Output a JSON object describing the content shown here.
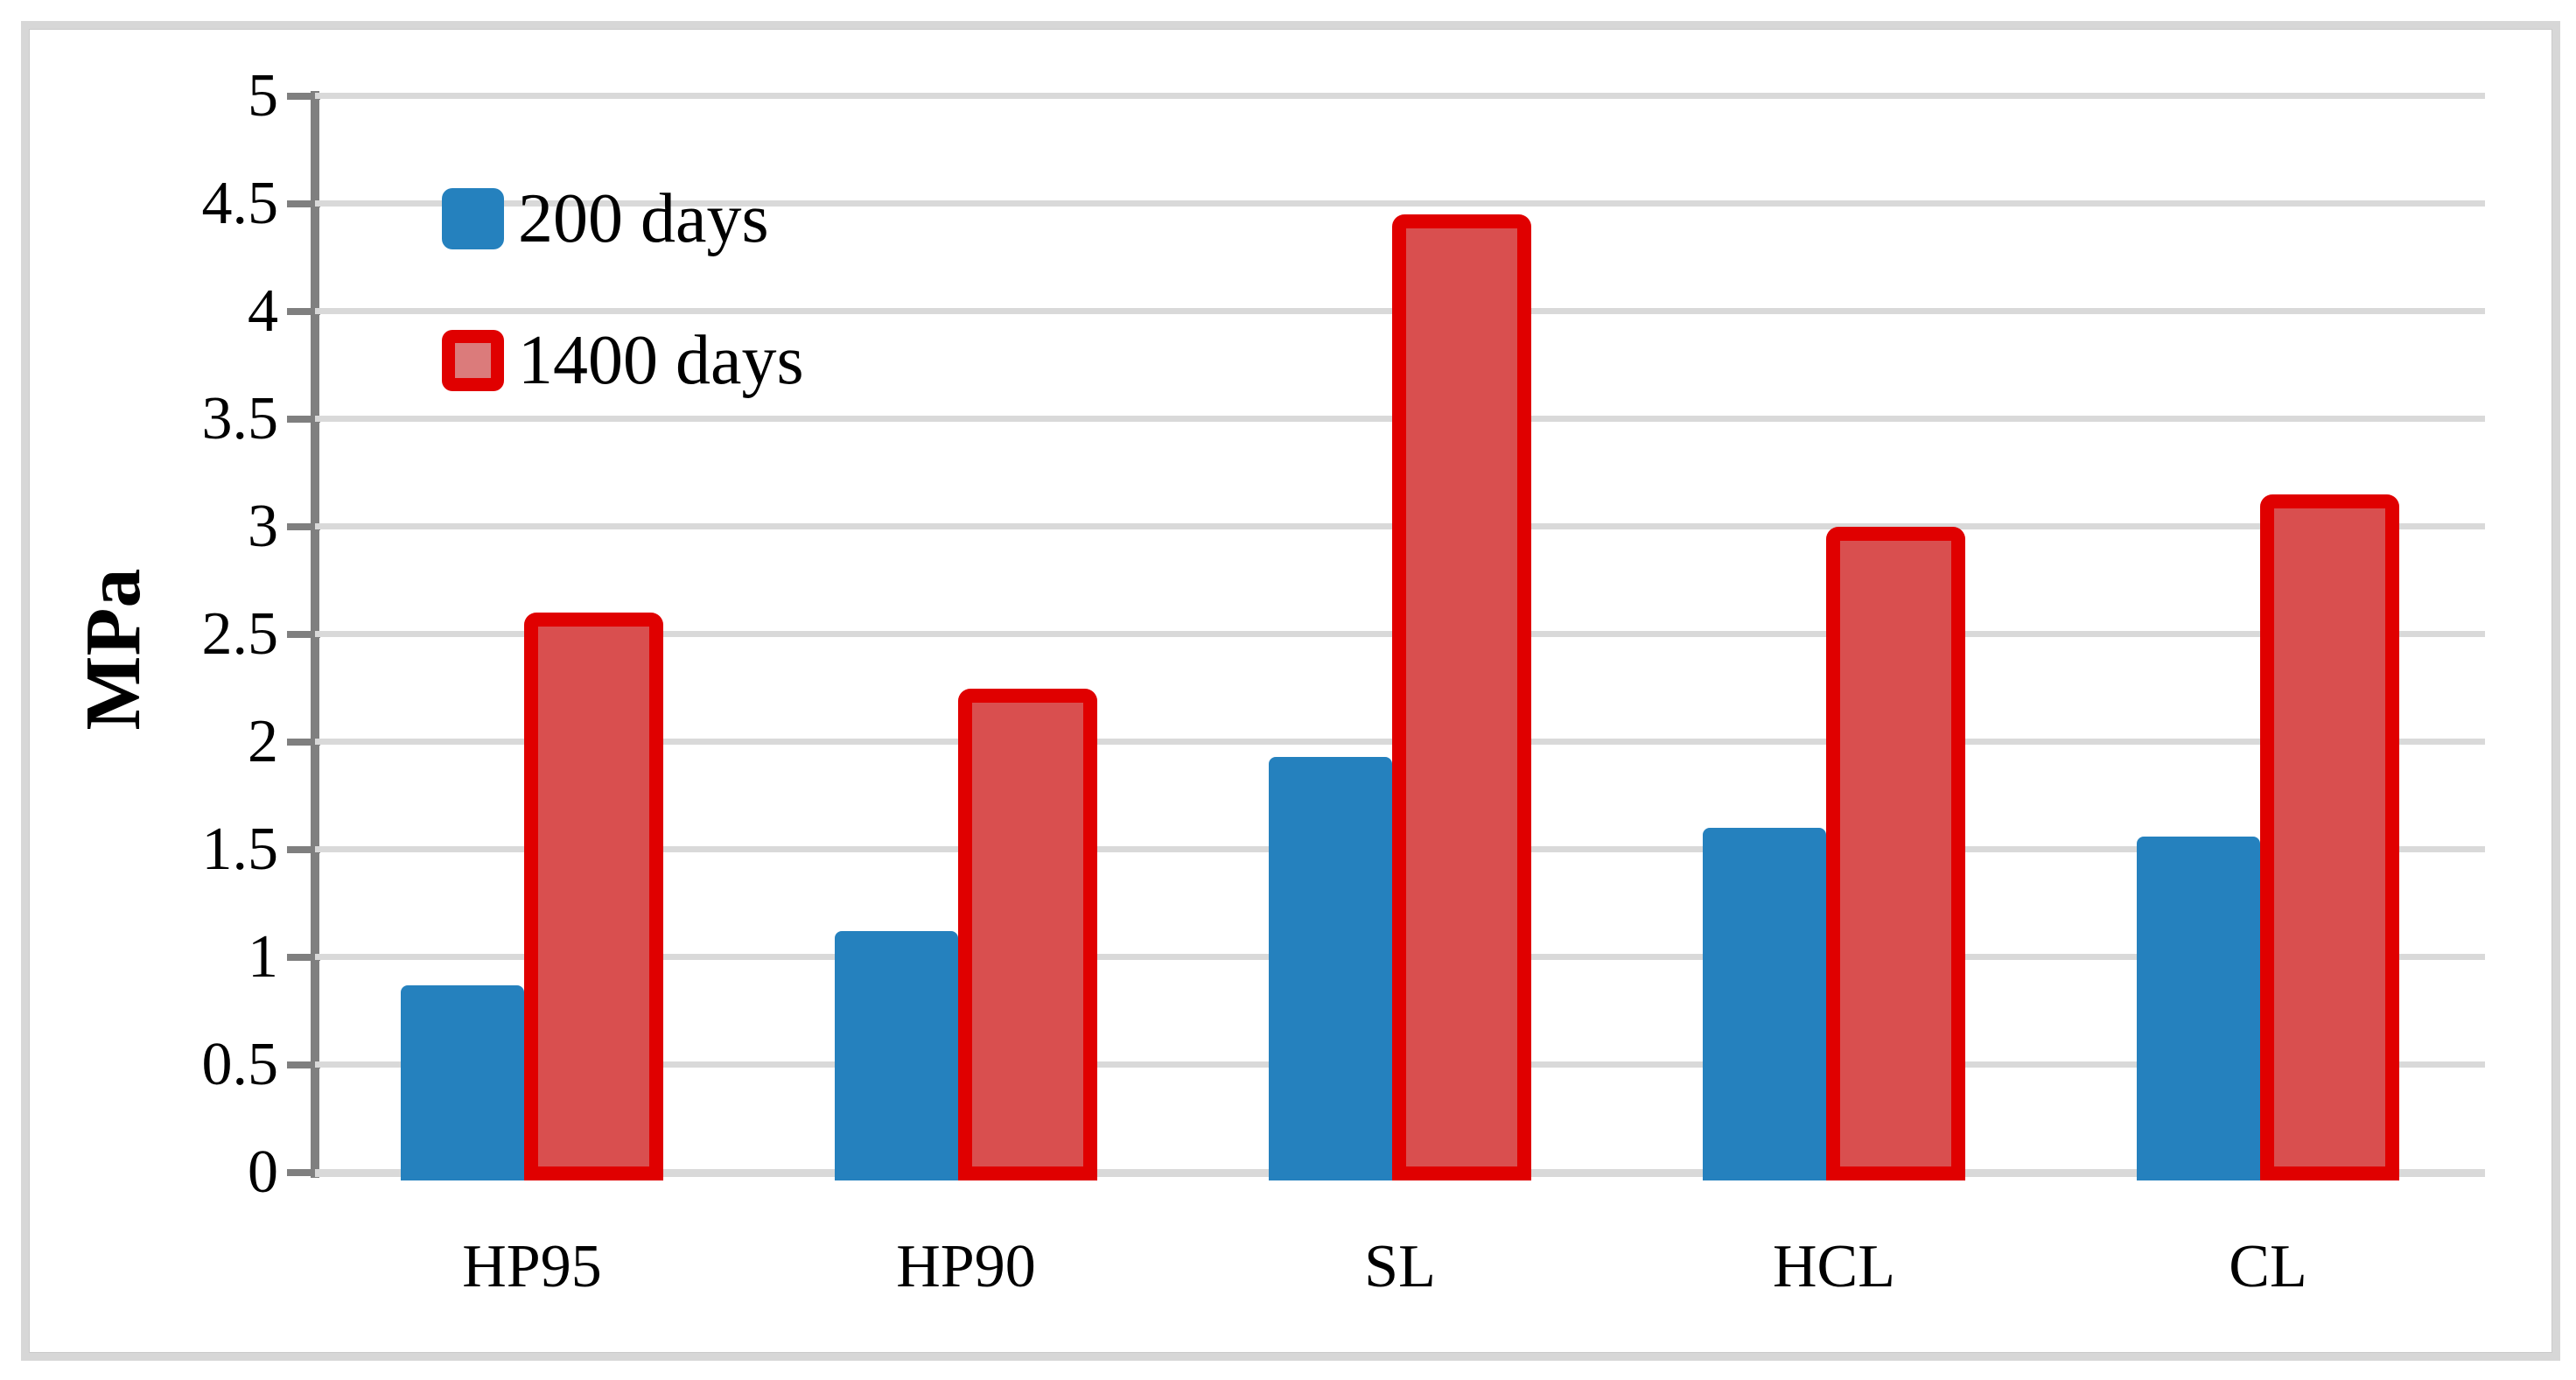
{
  "chart_data": {
    "type": "bar",
    "title": "",
    "xlabel": "",
    "ylabel": "MPa",
    "categories": [
      "HP95",
      "HP90",
      "SL",
      "HCL",
      "CL"
    ],
    "series": [
      {
        "name": "200 days",
        "style": "solid",
        "fill": "#2581BE",
        "border": "#2581BE",
        "values": [
          0.87,
          1.12,
          1.93,
          1.6,
          1.56
        ]
      },
      {
        "name": "1400 days",
        "style": "outlined",
        "fill": "#D94F4F",
        "border": "#E00000",
        "values": [
          2.6,
          2.25,
          4.45,
          3.0,
          3.15
        ]
      }
    ],
    "ylim": [
      0,
      5
    ],
    "ytick_step": 0.5,
    "yticks": [
      "0",
      "0.5",
      "1",
      "1.5",
      "2",
      "2.5",
      "3",
      "3.5",
      "4",
      "4.5",
      "5"
    ],
    "grid": "horizontal",
    "legend_position": "top-left-inside",
    "legend_swatch_inner_fill": "#DB7B7B",
    "colors": {
      "gridline": "#D9D9D9",
      "axis": "#7F7F7F",
      "text": "#000000",
      "frame": "#D7D7D7"
    }
  }
}
